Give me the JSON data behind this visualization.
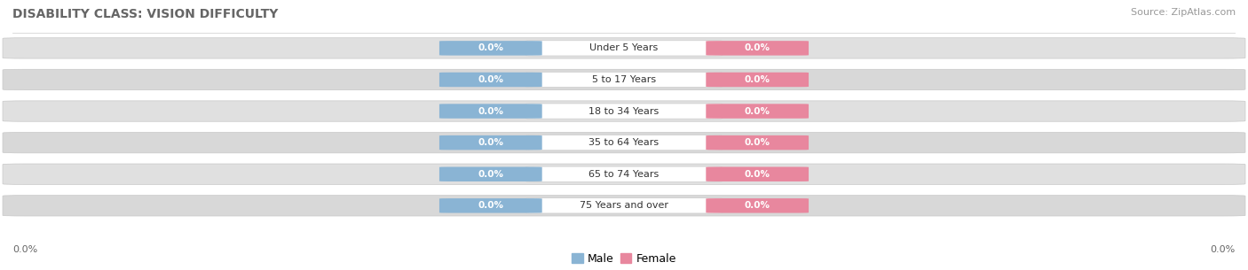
{
  "title": "DISABILITY CLASS: VISION DIFFICULTY",
  "source": "Source: ZipAtlas.com",
  "categories": [
    "Under 5 Years",
    "5 to 17 Years",
    "18 to 34 Years",
    "35 to 64 Years",
    "65 to 74 Years",
    "75 Years and over"
  ],
  "male_values": [
    "0.0%",
    "0.0%",
    "0.0%",
    "0.0%",
    "0.0%",
    "0.0%"
  ],
  "female_values": [
    "0.0%",
    "0.0%",
    "0.0%",
    "0.0%",
    "0.0%",
    "0.0%"
  ],
  "male_color": "#8ab4d4",
  "female_color": "#e8879e",
  "male_label": "Male",
  "female_label": "Female",
  "pill_color": "#e0e0e0",
  "pill_color_alt": "#d8d8d8",
  "center_box_color": "#ffffff",
  "title_fontsize": 10,
  "source_fontsize": 8,
  "value_fontsize": 7.5,
  "cat_fontsize": 8,
  "legend_fontsize": 9,
  "tick_fontsize": 8,
  "x_axis_label_left": "0.0%",
  "x_axis_label_right": "0.0%"
}
